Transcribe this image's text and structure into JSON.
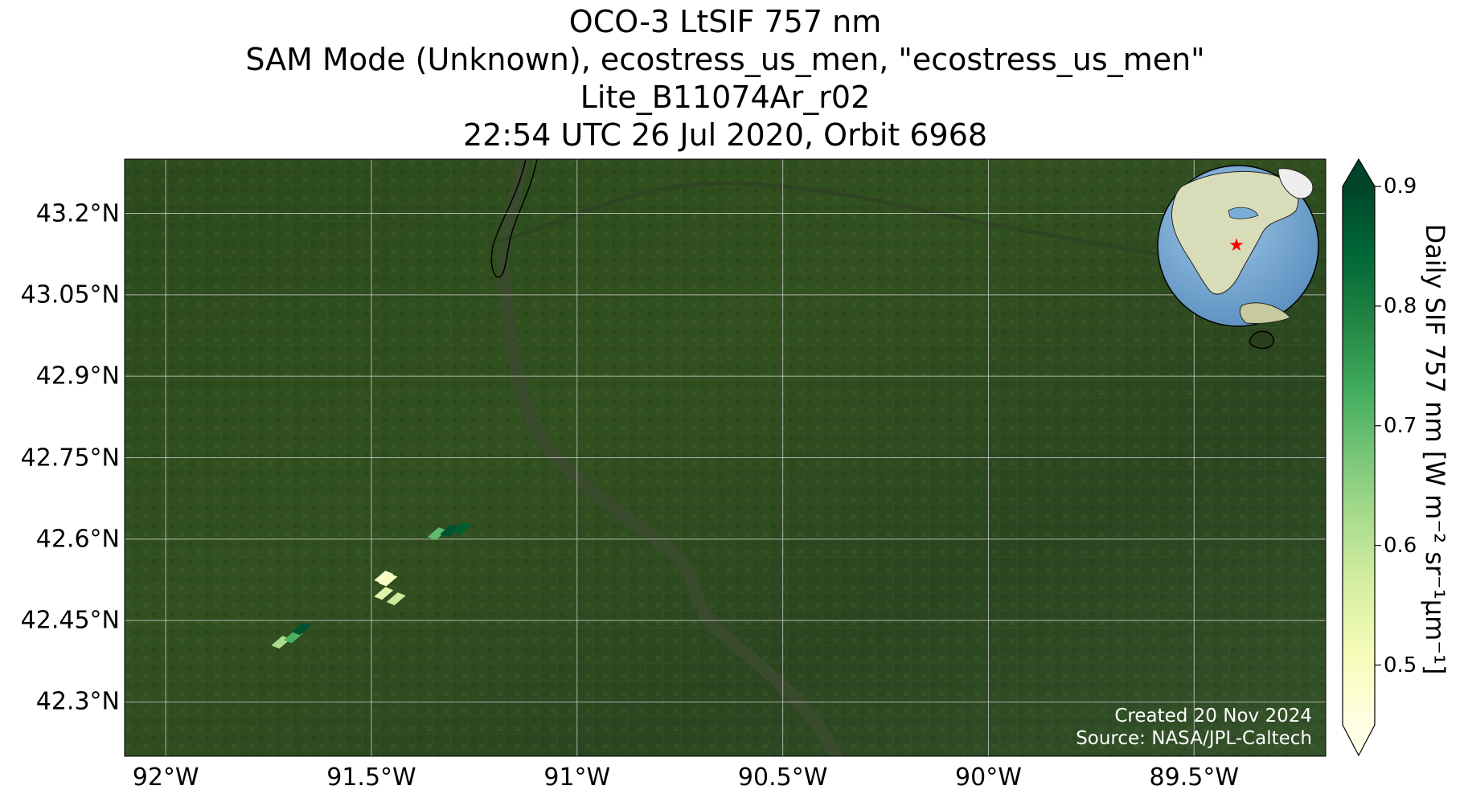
{
  "title": {
    "lines": [
      "OCO-3 LtSIF 757 nm",
      "SAM Mode (Unknown), ecostress_us_men, \"ecostress_us_men\"",
      "Lite_B11074Ar_r02",
      "22:54 UTC 26 Jul 2020, Orbit 6968"
    ]
  },
  "map": {
    "lon_range": [
      -92.1,
      -89.18
    ],
    "lat_range": [
      42.2,
      43.3
    ],
    "lon_ticks": [
      {
        "value": -92.0,
        "label": "92°W"
      },
      {
        "value": -91.5,
        "label": "91.5°W"
      },
      {
        "value": -91.0,
        "label": "91°W"
      },
      {
        "value": -90.5,
        "label": "90.5°W"
      },
      {
        "value": -90.0,
        "label": "90°W"
      },
      {
        "value": -89.5,
        "label": "89.5°W"
      }
    ],
    "lat_ticks": [
      {
        "value": 43.2,
        "label": "43.2°N"
      },
      {
        "value": 43.05,
        "label": "43.05°N"
      },
      {
        "value": 42.9,
        "label": "42.9°N"
      },
      {
        "value": 42.75,
        "label": "42.75°N"
      },
      {
        "value": 42.6,
        "label": "42.6°N"
      },
      {
        "value": 42.45,
        "label": "42.45°N"
      },
      {
        "value": 42.3,
        "label": "42.3°N"
      }
    ],
    "background_color": "#2e4a1f",
    "river_color": "#3a4a2c",
    "gridline_color": "#cfcfcf",
    "inset_globe": {
      "marker": "red-star",
      "marker_color": "#ff0000",
      "ocean_color": "#7aaed6",
      "land_color": "#c9cfa6"
    }
  },
  "colorbar": {
    "label": "Daily SIF 757 nm [W m⁻² sr⁻¹μm⁻¹]",
    "min": 0.45,
    "max": 0.9,
    "extend": "both",
    "ticks": [
      {
        "value": 0.5,
        "label": "0.5"
      },
      {
        "value": 0.6,
        "label": "0.6"
      },
      {
        "value": 0.7,
        "label": "0.7"
      },
      {
        "value": 0.8,
        "label": "0.8"
      },
      {
        "value": 0.9,
        "label": "0.9"
      }
    ],
    "colormap": [
      "#ffffe5",
      "#f7fcb9",
      "#d9f0a3",
      "#addd8e",
      "#78c679",
      "#41ab5d",
      "#238443",
      "#006837",
      "#004529"
    ]
  },
  "soundings": [
    {
      "lon": -91.34,
      "lat": 42.61,
      "value": 0.7
    },
    {
      "lon": -91.31,
      "lat": 42.615,
      "value": 0.88
    },
    {
      "lon": -91.28,
      "lat": 42.62,
      "value": 0.86
    },
    {
      "lon": -91.47,
      "lat": 42.53,
      "value": 0.47
    },
    {
      "lon": -91.46,
      "lat": 42.525,
      "value": 0.5
    },
    {
      "lon": -91.47,
      "lat": 42.5,
      "value": 0.55
    },
    {
      "lon": -91.44,
      "lat": 42.49,
      "value": 0.58
    },
    {
      "lon": -91.72,
      "lat": 42.41,
      "value": 0.62
    },
    {
      "lon": -91.69,
      "lat": 42.42,
      "value": 0.72
    },
    {
      "lon": -91.67,
      "lat": 42.435,
      "value": 0.88
    }
  ],
  "credit": {
    "created": "Created 20 Nov 2024",
    "source": "Source: NASA/JPL-Caltech"
  }
}
